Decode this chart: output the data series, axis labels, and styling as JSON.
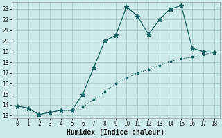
{
  "xlabel": "Humidex (Indice chaleur)",
  "background_color": "#cce8e8",
  "grid_color": "#aacccc",
  "line_color": "#1a6060",
  "line1_x": [
    0,
    1,
    2,
    3,
    4,
    5,
    6,
    7,
    8,
    9,
    10,
    11,
    12,
    13,
    14,
    15,
    16,
    17,
    18
  ],
  "line1_y": [
    13.9,
    13.7,
    13.1,
    13.3,
    13.5,
    13.5,
    15.0,
    17.5,
    20.0,
    20.5,
    23.2,
    22.3,
    20.6,
    22.0,
    23.0,
    23.3,
    19.3,
    19.0,
    18.9
  ],
  "line2_x": [
    0,
    1,
    2,
    3,
    4,
    5,
    6,
    7,
    8,
    9,
    10,
    11,
    12,
    13,
    14,
    15,
    16,
    17,
    18
  ],
  "line2_y": [
    13.9,
    13.7,
    13.1,
    13.3,
    13.5,
    13.5,
    13.8,
    14.5,
    15.2,
    16.0,
    16.5,
    17.0,
    17.3,
    17.7,
    18.1,
    18.3,
    18.5,
    18.7,
    18.9
  ],
  "ylim": [
    12.8,
    23.6
  ],
  "xlim": [
    -0.5,
    18.5
  ],
  "yticks": [
    13,
    14,
    15,
    16,
    17,
    18,
    19,
    20,
    21,
    22,
    23
  ],
  "xticks": [
    0,
    1,
    2,
    3,
    4,
    5,
    6,
    7,
    8,
    9,
    10,
    11,
    12,
    13,
    14,
    15,
    16,
    17,
    18
  ],
  "tick_fontsize": 5.5,
  "xlabel_fontsize": 7
}
